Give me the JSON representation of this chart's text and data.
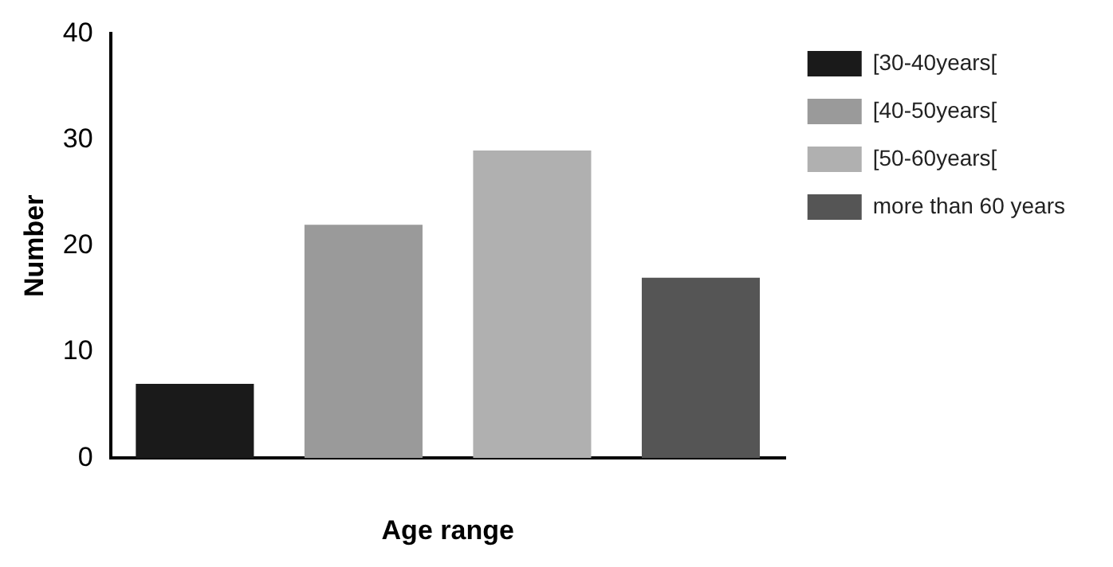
{
  "chart_data": {
    "type": "bar",
    "categories": [
      null,
      null,
      null,
      null
    ],
    "xlabel": "Age range",
    "ylabel": "Number",
    "ylim": [
      0,
      40
    ],
    "yticks": [
      0,
      10,
      20,
      30,
      40
    ],
    "grid": false,
    "legend": "right",
    "series": [
      {
        "name": "[30-40years[",
        "color": "#1a1a1a",
        "values": [
          7,
          null,
          null,
          null
        ]
      },
      {
        "name": "[40-50years[",
        "color": "#9a9a9a",
        "values": [
          null,
          22,
          null,
          null
        ]
      },
      {
        "name": "[50-60years[",
        "color": "#b0b0b0",
        "values": [
          null,
          null,
          29,
          null
        ]
      },
      {
        "name": "more than 60 years",
        "color": "#555555",
        "values": [
          null,
          null,
          null,
          17
        ]
      }
    ]
  }
}
